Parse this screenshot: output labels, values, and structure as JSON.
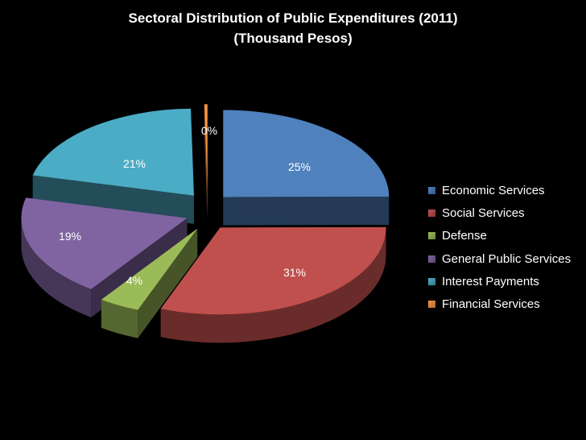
{
  "chart_data": {
    "type": "pie",
    "title": "Sectoral Distribution of Public Expenditures (2011)",
    "subtitle": "(Thousand Pesos)",
    "legend_position": "right",
    "slices": [
      {
        "name": "Economic Services",
        "value": 25,
        "label": "25%",
        "color": "#4F81BD"
      },
      {
        "name": "Social Services",
        "value": 31,
        "label": "31%",
        "color": "#C0504D"
      },
      {
        "name": "Defense",
        "value": 4,
        "label": "4%",
        "color": "#9BBB59"
      },
      {
        "name": "General Public Services",
        "value": 19,
        "label": "19%",
        "color": "#8064A2"
      },
      {
        "name": "Interest Payments",
        "value": 21,
        "label": "21%",
        "color": "#4BACC6"
      },
      {
        "name": "Financial Services",
        "value": 0.3,
        "label": "0%",
        "color": "#F79646"
      }
    ]
  }
}
